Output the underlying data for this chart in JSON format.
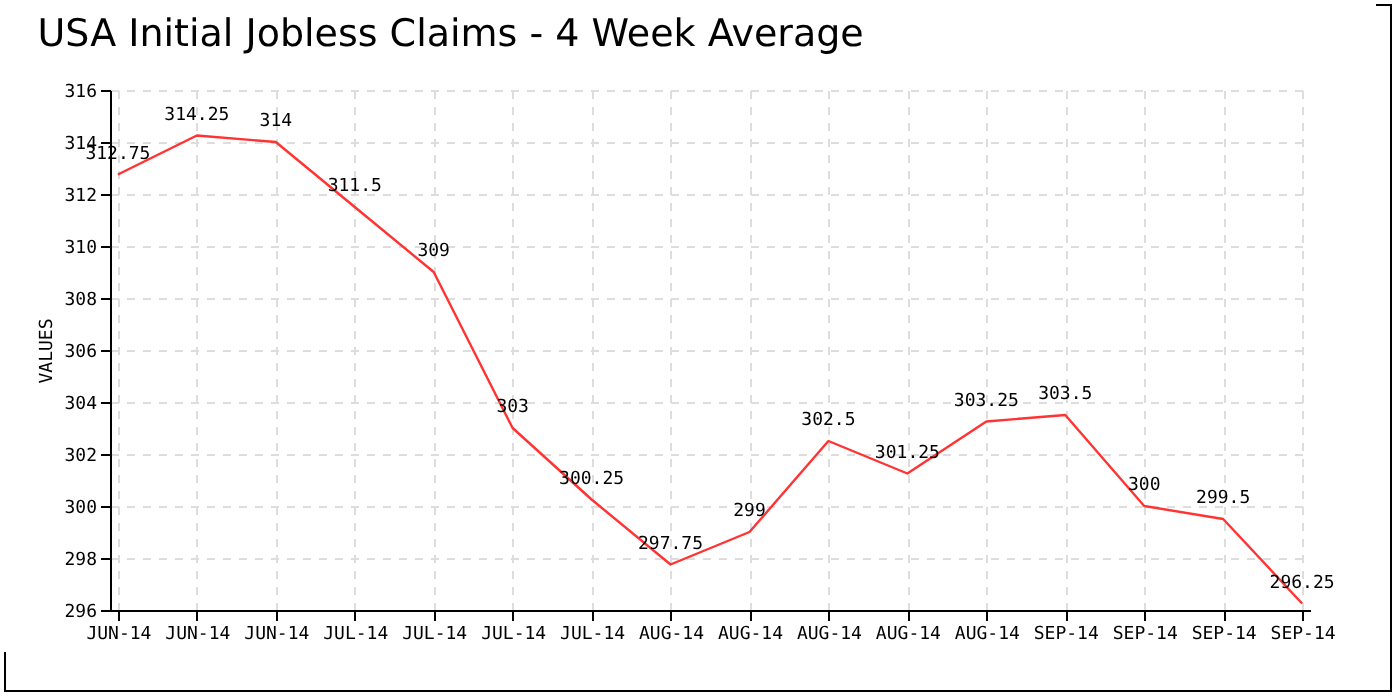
{
  "chart_data": {
    "type": "line",
    "title": "USA Initial Jobless Claims - 4 Week Average",
    "ylabel": "VALUES",
    "categories": [
      "JUN-14",
      "JUN-14",
      "JUN-14",
      "JUL-14",
      "JUL-14",
      "JUL-14",
      "JUL-14",
      "AUG-14",
      "AUG-14",
      "AUG-14",
      "AUG-14",
      "AUG-14",
      "SEP-14",
      "SEP-14",
      "SEP-14",
      "SEP-14"
    ],
    "series": [
      {
        "color": "#ff3333",
        "values": [
          312.75,
          314.25,
          314,
          311.5,
          309,
          303,
          300.25,
          297.75,
          299,
          302.5,
          301.25,
          303.25,
          303.5,
          300,
          299.5,
          296.25
        ]
      }
    ],
    "ylim": [
      296,
      316
    ],
    "yticks": [
      296,
      298,
      300,
      302,
      304,
      306,
      308,
      310,
      312,
      314,
      316
    ],
    "grid": true,
    "data_labels": true,
    "marker": "none",
    "line_style": "solid"
  }
}
